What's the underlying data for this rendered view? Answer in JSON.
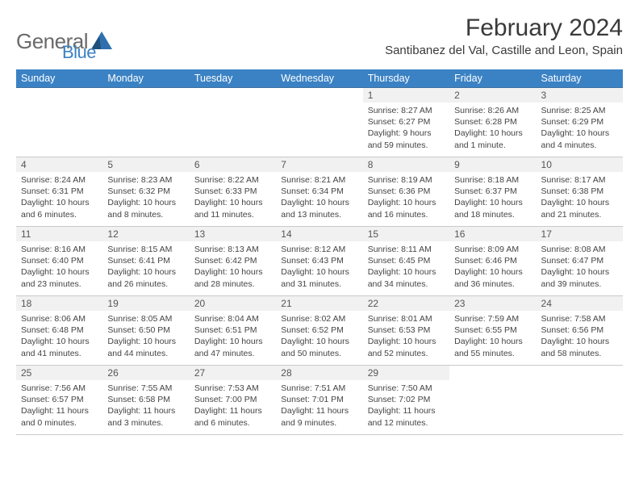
{
  "logo": {
    "text_main": "General",
    "text_sub": "Blue"
  },
  "title": "February 2024",
  "location": "Santibanez del Val, Castille and Leon, Spain",
  "colors": {
    "header_bg": "#3b82c4",
    "header_text": "#ffffff",
    "row_divider": "#3b6fa0",
    "daynum_bg": "#f1f1f1",
    "body_text": "#444444"
  },
  "weekdays": [
    "Sunday",
    "Monday",
    "Tuesday",
    "Wednesday",
    "Thursday",
    "Friday",
    "Saturday"
  ],
  "weeks": [
    [
      null,
      null,
      null,
      null,
      {
        "n": "1",
        "sunrise": "8:27 AM",
        "sunset": "6:27 PM",
        "daylight": "9 hours and 59 minutes."
      },
      {
        "n": "2",
        "sunrise": "8:26 AM",
        "sunset": "6:28 PM",
        "daylight": "10 hours and 1 minute."
      },
      {
        "n": "3",
        "sunrise": "8:25 AM",
        "sunset": "6:29 PM",
        "daylight": "10 hours and 4 minutes."
      }
    ],
    [
      {
        "n": "4",
        "sunrise": "8:24 AM",
        "sunset": "6:31 PM",
        "daylight": "10 hours and 6 minutes."
      },
      {
        "n": "5",
        "sunrise": "8:23 AM",
        "sunset": "6:32 PM",
        "daylight": "10 hours and 8 minutes."
      },
      {
        "n": "6",
        "sunrise": "8:22 AM",
        "sunset": "6:33 PM",
        "daylight": "10 hours and 11 minutes."
      },
      {
        "n": "7",
        "sunrise": "8:21 AM",
        "sunset": "6:34 PM",
        "daylight": "10 hours and 13 minutes."
      },
      {
        "n": "8",
        "sunrise": "8:19 AM",
        "sunset": "6:36 PM",
        "daylight": "10 hours and 16 minutes."
      },
      {
        "n": "9",
        "sunrise": "8:18 AM",
        "sunset": "6:37 PM",
        "daylight": "10 hours and 18 minutes."
      },
      {
        "n": "10",
        "sunrise": "8:17 AM",
        "sunset": "6:38 PM",
        "daylight": "10 hours and 21 minutes."
      }
    ],
    [
      {
        "n": "11",
        "sunrise": "8:16 AM",
        "sunset": "6:40 PM",
        "daylight": "10 hours and 23 minutes."
      },
      {
        "n": "12",
        "sunrise": "8:15 AM",
        "sunset": "6:41 PM",
        "daylight": "10 hours and 26 minutes."
      },
      {
        "n": "13",
        "sunrise": "8:13 AM",
        "sunset": "6:42 PM",
        "daylight": "10 hours and 28 minutes."
      },
      {
        "n": "14",
        "sunrise": "8:12 AM",
        "sunset": "6:43 PM",
        "daylight": "10 hours and 31 minutes."
      },
      {
        "n": "15",
        "sunrise": "8:11 AM",
        "sunset": "6:45 PM",
        "daylight": "10 hours and 34 minutes."
      },
      {
        "n": "16",
        "sunrise": "8:09 AM",
        "sunset": "6:46 PM",
        "daylight": "10 hours and 36 minutes."
      },
      {
        "n": "17",
        "sunrise": "8:08 AM",
        "sunset": "6:47 PM",
        "daylight": "10 hours and 39 minutes."
      }
    ],
    [
      {
        "n": "18",
        "sunrise": "8:06 AM",
        "sunset": "6:48 PM",
        "daylight": "10 hours and 41 minutes."
      },
      {
        "n": "19",
        "sunrise": "8:05 AM",
        "sunset": "6:50 PM",
        "daylight": "10 hours and 44 minutes."
      },
      {
        "n": "20",
        "sunrise": "8:04 AM",
        "sunset": "6:51 PM",
        "daylight": "10 hours and 47 minutes."
      },
      {
        "n": "21",
        "sunrise": "8:02 AM",
        "sunset": "6:52 PM",
        "daylight": "10 hours and 50 minutes."
      },
      {
        "n": "22",
        "sunrise": "8:01 AM",
        "sunset": "6:53 PM",
        "daylight": "10 hours and 52 minutes."
      },
      {
        "n": "23",
        "sunrise": "7:59 AM",
        "sunset": "6:55 PM",
        "daylight": "10 hours and 55 minutes."
      },
      {
        "n": "24",
        "sunrise": "7:58 AM",
        "sunset": "6:56 PM",
        "daylight": "10 hours and 58 minutes."
      }
    ],
    [
      {
        "n": "25",
        "sunrise": "7:56 AM",
        "sunset": "6:57 PM",
        "daylight": "11 hours and 0 minutes."
      },
      {
        "n": "26",
        "sunrise": "7:55 AM",
        "sunset": "6:58 PM",
        "daylight": "11 hours and 3 minutes."
      },
      {
        "n": "27",
        "sunrise": "7:53 AM",
        "sunset": "7:00 PM",
        "daylight": "11 hours and 6 minutes."
      },
      {
        "n": "28",
        "sunrise": "7:51 AM",
        "sunset": "7:01 PM",
        "daylight": "11 hours and 9 minutes."
      },
      {
        "n": "29",
        "sunrise": "7:50 AM",
        "sunset": "7:02 PM",
        "daylight": "11 hours and 12 minutes."
      },
      null,
      null
    ]
  ],
  "labels": {
    "sunrise": "Sunrise:",
    "sunset": "Sunset:",
    "daylight": "Daylight:"
  }
}
